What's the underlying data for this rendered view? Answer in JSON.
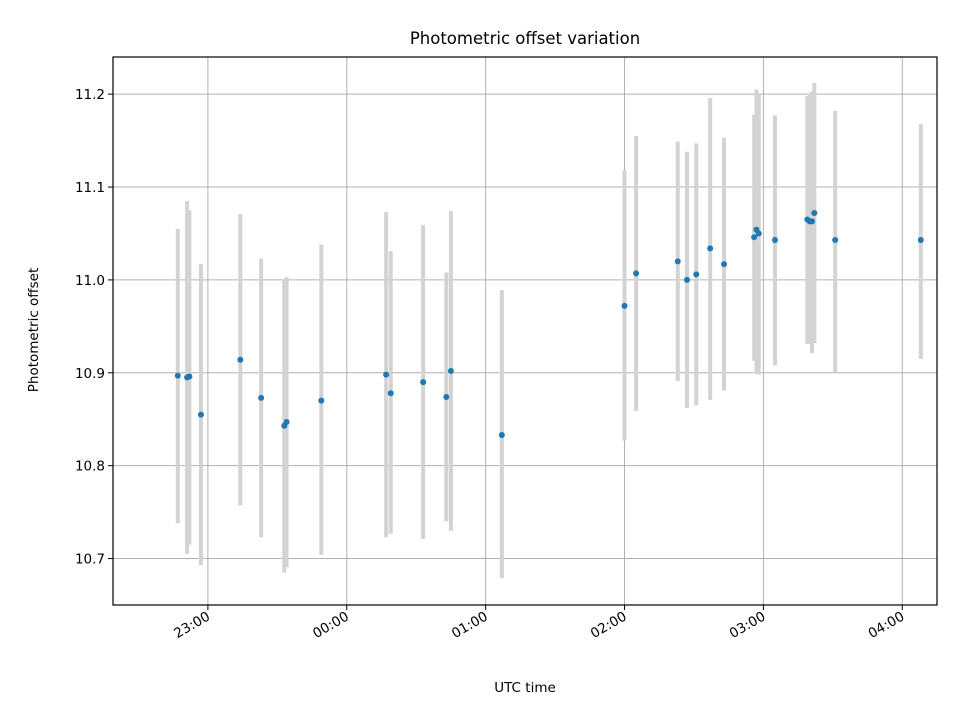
{
  "chart_data": {
    "type": "scatter",
    "title": "Photometric offset variation",
    "xlabel": "UTC time",
    "ylabel": "Photometric offset",
    "x_tick_labels": [
      "23:00",
      "00:00",
      "01:00",
      "02:00",
      "03:00",
      "04:00"
    ],
    "y_tick_labels": [
      "10.7",
      "10.8",
      "10.9",
      "11.0",
      "11.1",
      "11.2"
    ],
    "x_ticks": [
      "23:00",
      "00:00",
      "01:00",
      "02:00",
      "03:00",
      "04:00"
    ],
    "y_ticks": [
      10.7,
      10.8,
      10.9,
      11.0,
      11.1,
      11.2
    ],
    "xlim": [
      "22:19",
      "04:15"
    ],
    "ylim": [
      10.65,
      11.24
    ],
    "grid": true,
    "legend": "none",
    "colors": {
      "point": "#1f77b4",
      "errorbar": "#d3d3d3",
      "grid": "#b0b0b0"
    },
    "points": [
      {
        "t": "22:47",
        "y": 10.897,
        "lo": 10.738,
        "hi": 11.055
      },
      {
        "t": "22:51",
        "y": 10.895,
        "lo": 10.705,
        "hi": 11.085
      },
      {
        "t": "22:52",
        "y": 10.896,
        "lo": 10.715,
        "hi": 11.075
      },
      {
        "t": "22:57",
        "y": 10.855,
        "lo": 10.693,
        "hi": 11.017
      },
      {
        "t": "23:14",
        "y": 10.914,
        "lo": 10.757,
        "hi": 11.071
      },
      {
        "t": "23:23",
        "y": 10.873,
        "lo": 10.723,
        "hi": 11.023
      },
      {
        "t": "23:33",
        "y": 10.843,
        "lo": 10.685,
        "hi": 11.001
      },
      {
        "t": "23:34",
        "y": 10.847,
        "lo": 10.691,
        "hi": 11.003
      },
      {
        "t": "23:49",
        "y": 10.87,
        "lo": 10.704,
        "hi": 11.038
      },
      {
        "t": "00:17",
        "y": 10.898,
        "lo": 10.723,
        "hi": 11.073
      },
      {
        "t": "00:19",
        "y": 10.878,
        "lo": 10.727,
        "hi": 11.031
      },
      {
        "t": "00:33",
        "y": 10.89,
        "lo": 10.721,
        "hi": 11.059
      },
      {
        "t": "00:43",
        "y": 10.874,
        "lo": 10.74,
        "hi": 11.008
      },
      {
        "t": "00:45",
        "y": 10.902,
        "lo": 10.73,
        "hi": 11.074
      },
      {
        "t": "01:07",
        "y": 10.833,
        "lo": 10.679,
        "hi": 10.989
      },
      {
        "t": "02:00",
        "y": 10.972,
        "lo": 10.827,
        "hi": 11.118
      },
      {
        "t": "02:05",
        "y": 11.007,
        "lo": 10.859,
        "hi": 11.155
      },
      {
        "t": "02:23",
        "y": 11.02,
        "lo": 10.891,
        "hi": 11.149
      },
      {
        "t": "02:27",
        "y": 11.0,
        "lo": 10.862,
        "hi": 11.138
      },
      {
        "t": "02:31",
        "y": 11.006,
        "lo": 10.865,
        "hi": 11.147
      },
      {
        "t": "02:37",
        "y": 11.034,
        "lo": 10.871,
        "hi": 11.196
      },
      {
        "t": "02:43",
        "y": 11.017,
        "lo": 10.881,
        "hi": 11.153
      },
      {
        "t": "02:56",
        "y": 11.046,
        "lo": 10.913,
        "hi": 11.178
      },
      {
        "t": "02:57",
        "y": 11.054,
        "lo": 10.899,
        "hi": 11.205
      },
      {
        "t": "02:58",
        "y": 11.05,
        "lo": 10.898,
        "hi": 11.201
      },
      {
        "t": "03:05",
        "y": 11.043,
        "lo": 10.908,
        "hi": 11.177
      },
      {
        "t": "03:19",
        "y": 11.065,
        "lo": 10.931,
        "hi": 11.198
      },
      {
        "t": "03:20",
        "y": 11.063,
        "lo": 10.931,
        "hi": 11.201
      },
      {
        "t": "03:21",
        "y": 11.063,
        "lo": 10.921,
        "hi": 11.203
      },
      {
        "t": "03:22",
        "y": 11.072,
        "lo": 10.932,
        "hi": 11.212
      },
      {
        "t": "03:31",
        "y": 11.043,
        "lo": 10.9,
        "hi": 11.182
      },
      {
        "t": "04:08",
        "y": 11.043,
        "lo": 10.915,
        "hi": 11.168
      }
    ]
  }
}
